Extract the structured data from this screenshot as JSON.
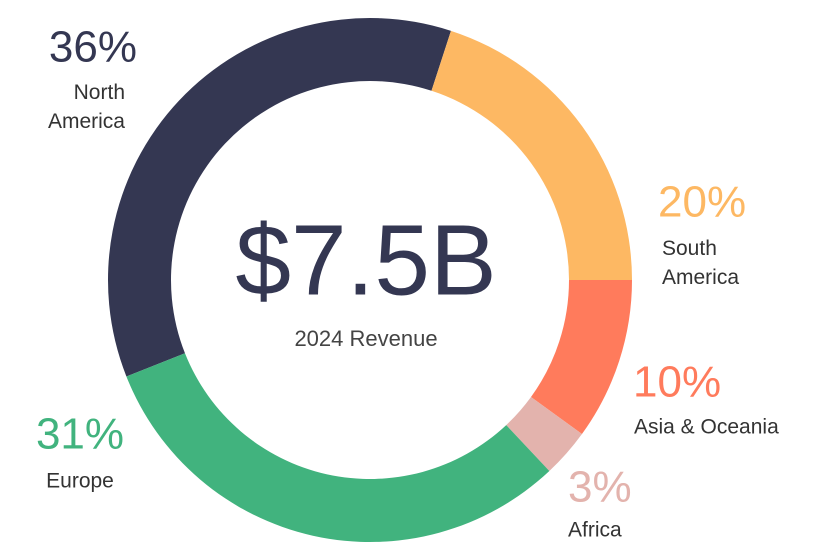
{
  "chart_data": {
    "type": "donut",
    "center_value": "$7.5B",
    "center_label": "2024 Revenue",
    "categories": [
      "North America",
      "South America",
      "Asia & Oceania",
      "Africa",
      "Europe"
    ],
    "values": [
      36,
      20,
      10,
      3,
      31
    ],
    "value_labels": [
      "36%",
      "20%",
      "10%",
      "3%",
      "31%"
    ],
    "colors": [
      "#343752",
      "#fdb863",
      "#ff7b5c",
      "#e3b3ad",
      "#41b37e"
    ]
  }
}
